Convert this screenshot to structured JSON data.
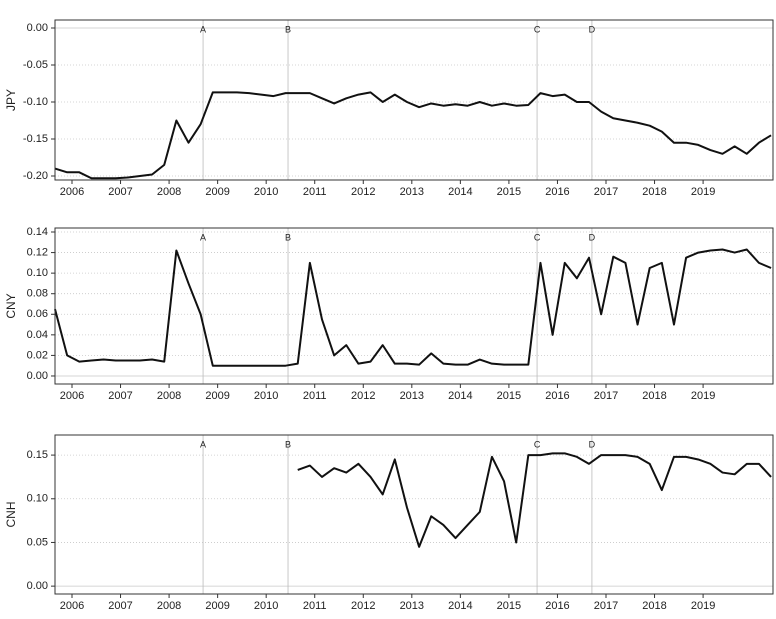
{
  "chart_data": [
    {
      "type": "line",
      "ylabel": "JPY",
      "x": [
        2005.65,
        2005.9,
        2006.15,
        2006.4,
        2006.65,
        2006.9,
        2007.15,
        2007.4,
        2007.65,
        2007.9,
        2008.15,
        2008.4,
        2008.65,
        2008.9,
        2009.15,
        2009.4,
        2009.65,
        2009.9,
        2010.15,
        2010.4,
        2010.65,
        2010.9,
        2011.15,
        2011.4,
        2011.65,
        2011.9,
        2012.15,
        2012.4,
        2012.65,
        2012.9,
        2013.15,
        2013.4,
        2013.65,
        2013.9,
        2014.15,
        2014.4,
        2014.65,
        2014.9,
        2015.15,
        2015.4,
        2015.65,
        2015.9,
        2016.15,
        2016.4,
        2016.65,
        2016.9,
        2017.15,
        2017.4,
        2017.65,
        2017.9,
        2018.15,
        2018.4,
        2018.65,
        2018.9,
        2019.15,
        2019.4,
        2019.65,
        2019.9,
        2020.15,
        2020.4
      ],
      "values": [
        -0.19,
        -0.195,
        -0.195,
        -0.203,
        -0.203,
        -0.203,
        -0.202,
        -0.2,
        -0.198,
        -0.185,
        -0.125,
        -0.155,
        -0.13,
        -0.087,
        -0.087,
        -0.087,
        -0.088,
        -0.09,
        -0.092,
        -0.088,
        -0.088,
        -0.088,
        -0.095,
        -0.102,
        -0.095,
        -0.09,
        -0.087,
        -0.1,
        -0.09,
        -0.1,
        -0.107,
        -0.102,
        -0.105,
        -0.103,
        -0.105,
        -0.1,
        -0.105,
        -0.102,
        -0.105,
        -0.104,
        -0.088,
        -0.092,
        -0.09,
        -0.1,
        -0.1,
        -0.113,
        -0.122,
        -0.125,
        -0.128,
        -0.132,
        -0.14,
        -0.155,
        -0.155,
        -0.158,
        -0.165,
        -0.17,
        -0.16,
        -0.17,
        -0.155,
        -0.145
      ],
      "color": "#111111",
      "xlim": [
        2005.65,
        2020.44
      ],
      "xticks": [
        2006,
        2007,
        2008,
        2009,
        2010,
        2011,
        2012,
        2013,
        2014,
        2015,
        2016,
        2017,
        2018,
        2019
      ],
      "ylim": [
        -0.2054,
        0.0108
      ],
      "yticks": [
        {
          "value": 0,
          "label": "0.00"
        },
        -0.05,
        {
          "value": -0.1,
          "label": "-0.10"
        },
        {
          "value": -0.15,
          "label": "-0.15"
        },
        {
          "value": -0.2,
          "label": "-0.20"
        }
      ],
      "grid": true,
      "annotations": [
        {
          "label": "A",
          "x": 2008.7
        },
        {
          "label": "B",
          "x": 2010.45
        },
        {
          "label": "C",
          "x": 2015.58
        },
        {
          "label": "D",
          "x": 2016.71
        }
      ]
    },
    {
      "type": "line",
      "ylabel": "CNY",
      "x": [
        2005.65,
        2005.9,
        2006.15,
        2006.4,
        2006.65,
        2006.9,
        2007.15,
        2007.4,
        2007.65,
        2007.9,
        2008.15,
        2008.4,
        2008.65,
        2008.9,
        2009.15,
        2009.4,
        2009.65,
        2009.9,
        2010.15,
        2010.4,
        2010.65,
        2010.9,
        2011.15,
        2011.4,
        2011.65,
        2011.9,
        2012.15,
        2012.4,
        2012.65,
        2012.9,
        2013.15,
        2013.4,
        2013.65,
        2013.9,
        2014.15,
        2014.4,
        2014.65,
        2014.9,
        2015.15,
        2015.4,
        2015.65,
        2015.9,
        2016.15,
        2016.4,
        2016.65,
        2016.9,
        2017.15,
        2017.4,
        2017.65,
        2017.9,
        2018.15,
        2018.4,
        2018.65,
        2018.9,
        2019.15,
        2019.4,
        2019.65,
        2019.9,
        2020.15,
        2020.4
      ],
      "values": [
        0.065,
        0.02,
        0.014,
        0.015,
        0.016,
        0.015,
        0.015,
        0.015,
        0.016,
        0.014,
        0.122,
        0.09,
        0.06,
        0.01,
        0.01,
        0.01,
        0.01,
        0.01,
        0.01,
        0.01,
        0.012,
        0.11,
        0.055,
        0.02,
        0.03,
        0.012,
        0.014,
        0.03,
        0.012,
        0.012,
        0.011,
        0.022,
        0.012,
        0.011,
        0.011,
        0.016,
        0.012,
        0.011,
        0.011,
        0.011,
        0.11,
        0.04,
        0.11,
        0.095,
        0.115,
        0.06,
        0.116,
        0.11,
        0.05,
        0.105,
        0.11,
        0.05,
        0.115,
        0.12,
        0.122,
        0.123,
        0.12,
        0.123,
        0.11,
        0.105
      ],
      "color": "#111111",
      "xlim": [
        2005.65,
        2020.44
      ],
      "xticks": [
        2006,
        2007,
        2008,
        2009,
        2010,
        2011,
        2012,
        2013,
        2014,
        2015,
        2016,
        2017,
        2018,
        2019
      ],
      "ylim": [
        -0.0078,
        0.1439
      ],
      "yticks": [
        {
          "value": 0,
          "label": "0.00"
        },
        0.02,
        0.04,
        0.06,
        0.08,
        {
          "value": 0.1,
          "label": "0.10"
        },
        0.12,
        0.14
      ],
      "grid": true,
      "annotations": [
        {
          "label": "A",
          "x": 2008.7
        },
        {
          "label": "B",
          "x": 2010.45
        },
        {
          "label": "C",
          "x": 2015.58
        },
        {
          "label": "D",
          "x": 2016.71
        }
      ]
    },
    {
      "type": "line",
      "ylabel": "CNH",
      "x": [
        2005.65,
        2005.9,
        2006.15,
        2006.4,
        2006.65,
        2006.9,
        2007.15,
        2007.4,
        2007.65,
        2007.9,
        2008.15,
        2008.4,
        2008.65,
        2008.9,
        2009.15,
        2009.4,
        2009.65,
        2009.9,
        2010.15,
        2010.4,
        2010.65,
        2010.9,
        2011.15,
        2011.4,
        2011.65,
        2011.9,
        2012.15,
        2012.4,
        2012.65,
        2012.9,
        2013.15,
        2013.4,
        2013.65,
        2013.9,
        2014.15,
        2014.4,
        2014.65,
        2014.9,
        2015.15,
        2015.4,
        2015.65,
        2015.9,
        2016.15,
        2016.4,
        2016.65,
        2016.9,
        2017.15,
        2017.4,
        2017.65,
        2017.9,
        2018.15,
        2018.4,
        2018.65,
        2018.9,
        2019.15,
        2019.4,
        2019.65,
        2019.9,
        2020.15,
        2020.4
      ],
      "values": [
        null,
        null,
        null,
        null,
        null,
        null,
        null,
        null,
        null,
        null,
        null,
        null,
        null,
        null,
        null,
        null,
        null,
        null,
        null,
        null,
        0.133,
        0.138,
        0.125,
        0.135,
        0.13,
        0.14,
        0.125,
        0.105,
        0.145,
        0.09,
        0.045,
        0.08,
        0.07,
        0.055,
        0.07,
        0.085,
        0.148,
        0.12,
        0.05,
        0.15,
        0.15,
        0.152,
        0.152,
        0.148,
        0.14,
        0.15,
        0.15,
        0.15,
        0.148,
        0.14,
        0.11,
        0.148,
        0.148,
        0.145,
        0.14,
        0.13,
        0.128,
        0.14,
        0.14,
        0.125
      ],
      "color": "#111111",
      "xlim": [
        2005.65,
        2020.44
      ],
      "xticks": [
        2006,
        2007,
        2008,
        2009,
        2010,
        2011,
        2012,
        2013,
        2014,
        2015,
        2016,
        2017,
        2018,
        2019
      ],
      "ylim": [
        -0.009,
        0.173
      ],
      "yticks": [
        {
          "value": 0,
          "label": "0.00"
        },
        0.05,
        {
          "value": 0.1,
          "label": "0.10"
        },
        0.15
      ],
      "grid": true,
      "annotations": [
        {
          "label": "A",
          "x": 2008.7
        },
        {
          "label": "B",
          "x": 2010.45
        },
        {
          "label": "C",
          "x": 2015.58
        },
        {
          "label": "D",
          "x": 2016.71
        }
      ]
    }
  ]
}
